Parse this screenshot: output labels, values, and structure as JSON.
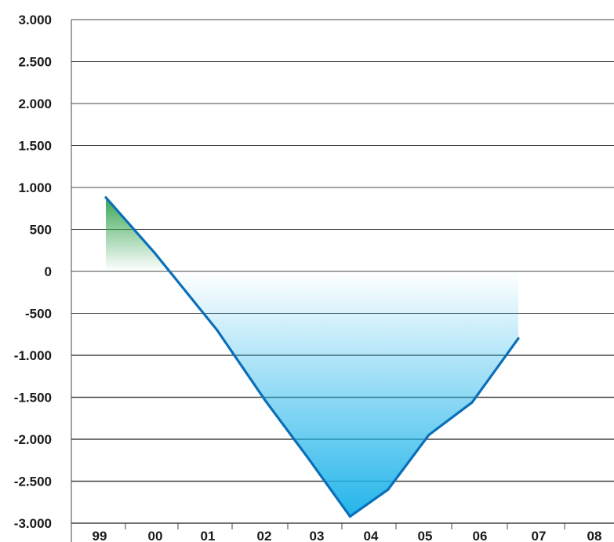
{
  "chart_data": {
    "type": "area",
    "categories": [
      "99",
      "00",
      "01",
      "02",
      "03",
      "04",
      "05",
      "06",
      "07",
      "08"
    ],
    "x": [
      0,
      0.9,
      2.05,
      2.95,
      3.7,
      4.5,
      5.2,
      5.95,
      6.75,
      7.6
    ],
    "values": [
      880,
      220,
      -700,
      -1550,
      -2200,
      -2920,
      -2600,
      -1950,
      -1560,
      -800
    ],
    "ylim": [
      -3000,
      3000
    ],
    "yticks": [
      "3.000",
      "2.500",
      "2.000",
      "1.500",
      "1.000",
      "500",
      "0",
      "-500",
      "-1.000",
      "-1.500",
      "-2.000",
      "-2.500",
      "-3.000"
    ],
    "ytick_values": [
      3000,
      2500,
      2000,
      1500,
      1000,
      500,
      0,
      -500,
      -1000,
      -1500,
      -2000,
      -2500,
      -3000
    ],
    "title": "",
    "xlabel": "",
    "ylabel": "",
    "grid": true,
    "colors": {
      "line": "#0a6fb8",
      "fill_positive": "#3aa655",
      "fill_negative": "#1db3ea",
      "grid": "#444444"
    }
  }
}
